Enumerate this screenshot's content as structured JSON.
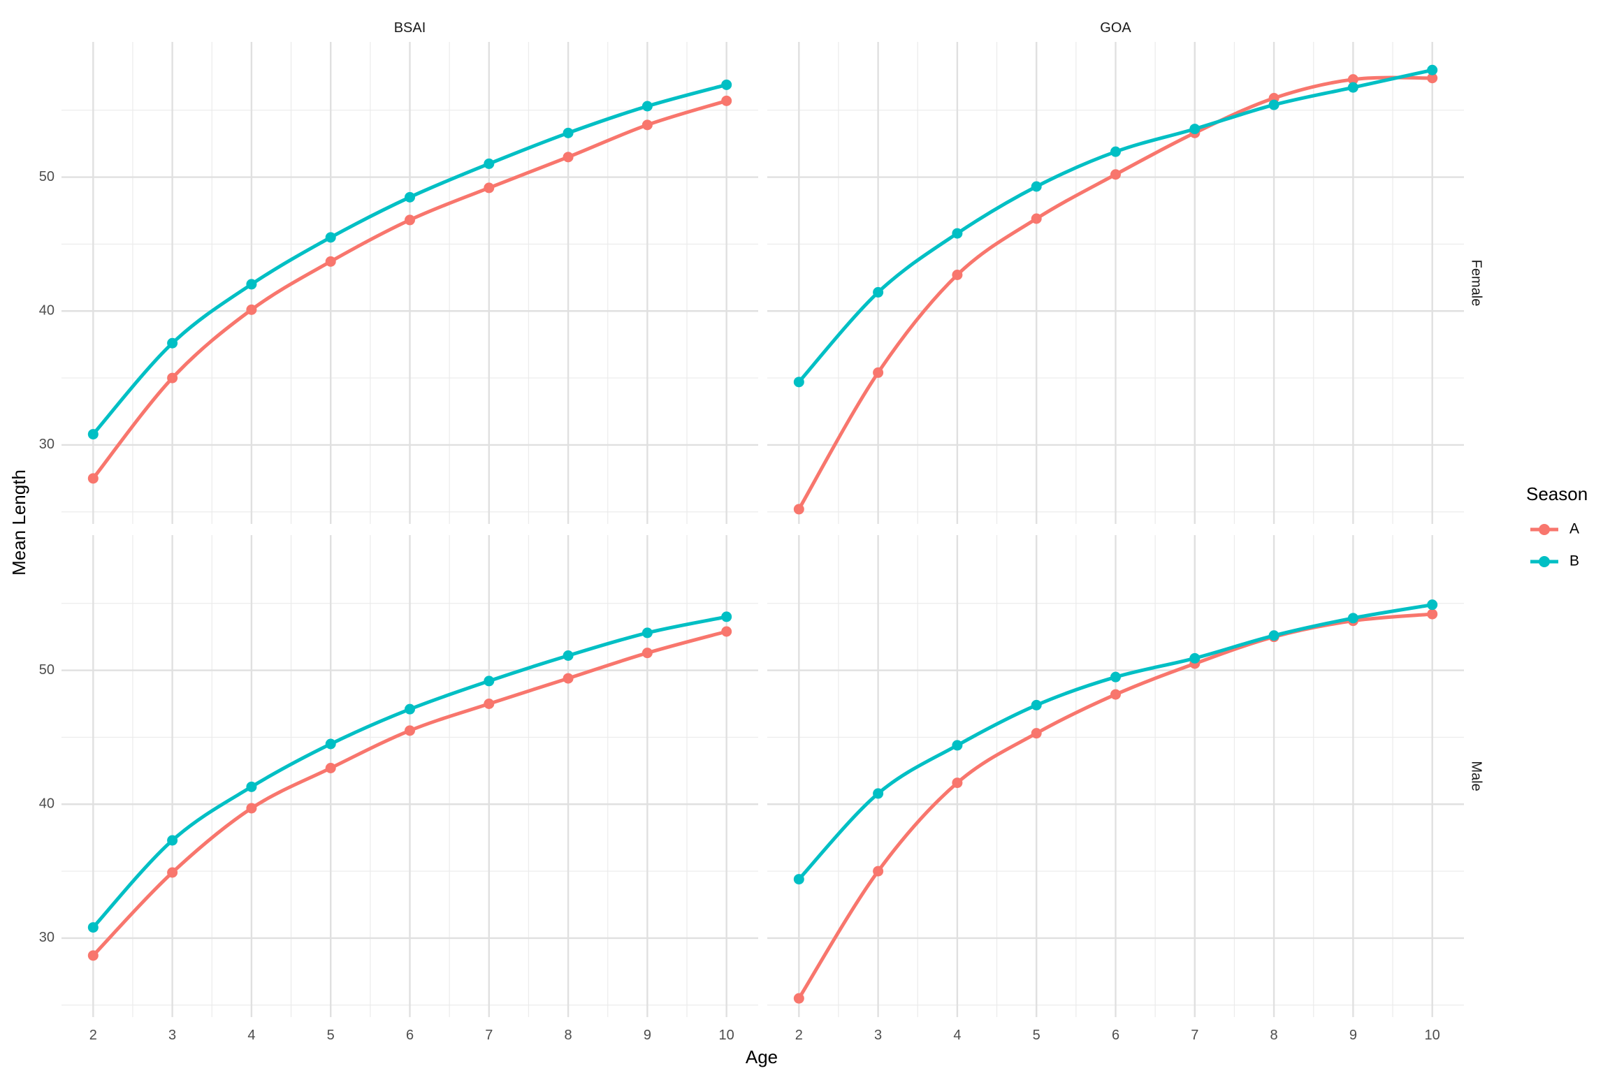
{
  "chart_data": {
    "type": "line",
    "xlabel": "Age",
    "ylabel": "Mean Length",
    "x": [
      2,
      3,
      4,
      5,
      6,
      7,
      8,
      9,
      10
    ],
    "xlim": [
      1.6,
      10.4
    ],
    "x_ticks": [
      2,
      3,
      4,
      5,
      6,
      7,
      8,
      9,
      10
    ],
    "ylim": [
      24.1,
      60.1
    ],
    "y_ticks": [
      30,
      40,
      50
    ],
    "grid": true,
    "columns": [
      "BSAI",
      "GOA"
    ],
    "rows": [
      "Female",
      "Male"
    ],
    "legend": {
      "title": "Season",
      "position": "right",
      "entries": [
        {
          "label": "A",
          "color": "#F8766D"
        },
        {
          "label": "B",
          "color": "#00BFC4"
        }
      ]
    },
    "panels": [
      {
        "column": "BSAI",
        "row": "Female",
        "series": [
          {
            "name": "A",
            "color": "#F8766D",
            "values": [
              27.5,
              35.0,
              40.1,
              43.7,
              46.8,
              49.2,
              51.5,
              53.9,
              55.7
            ]
          },
          {
            "name": "B",
            "color": "#00BFC4",
            "values": [
              30.8,
              37.6,
              42.0,
              45.5,
              48.5,
              51.0,
              53.3,
              55.3,
              56.9
            ]
          }
        ]
      },
      {
        "column": "GOA",
        "row": "Female",
        "series": [
          {
            "name": "A",
            "color": "#F8766D",
            "values": [
              25.2,
              35.4,
              42.7,
              46.9,
              50.2,
              53.3,
              55.9,
              57.3,
              57.4
            ]
          },
          {
            "name": "B",
            "color": "#00BFC4",
            "values": [
              34.7,
              41.4,
              45.8,
              49.3,
              51.9,
              53.6,
              55.4,
              56.7,
              58.0
            ]
          }
        ]
      },
      {
        "column": "BSAI",
        "row": "Male",
        "series": [
          {
            "name": "A",
            "color": "#F8766D",
            "values": [
              28.7,
              34.9,
              39.7,
              42.7,
              45.5,
              47.5,
              49.4,
              51.3,
              52.9
            ]
          },
          {
            "name": "B",
            "color": "#00BFC4",
            "values": [
              30.8,
              37.3,
              41.3,
              44.5,
              47.1,
              49.2,
              51.1,
              52.8,
              54.0
            ]
          }
        ]
      },
      {
        "column": "GOA",
        "row": "Male",
        "series": [
          {
            "name": "A",
            "color": "#F8766D",
            "values": [
              25.5,
              35.0,
              41.6,
              45.3,
              48.2,
              50.5,
              52.5,
              53.7,
              54.2
            ]
          },
          {
            "name": "B",
            "color": "#00BFC4",
            "values": [
              34.4,
              40.8,
              44.4,
              47.4,
              49.5,
              50.9,
              52.6,
              53.9,
              54.9
            ]
          }
        ]
      }
    ]
  }
}
